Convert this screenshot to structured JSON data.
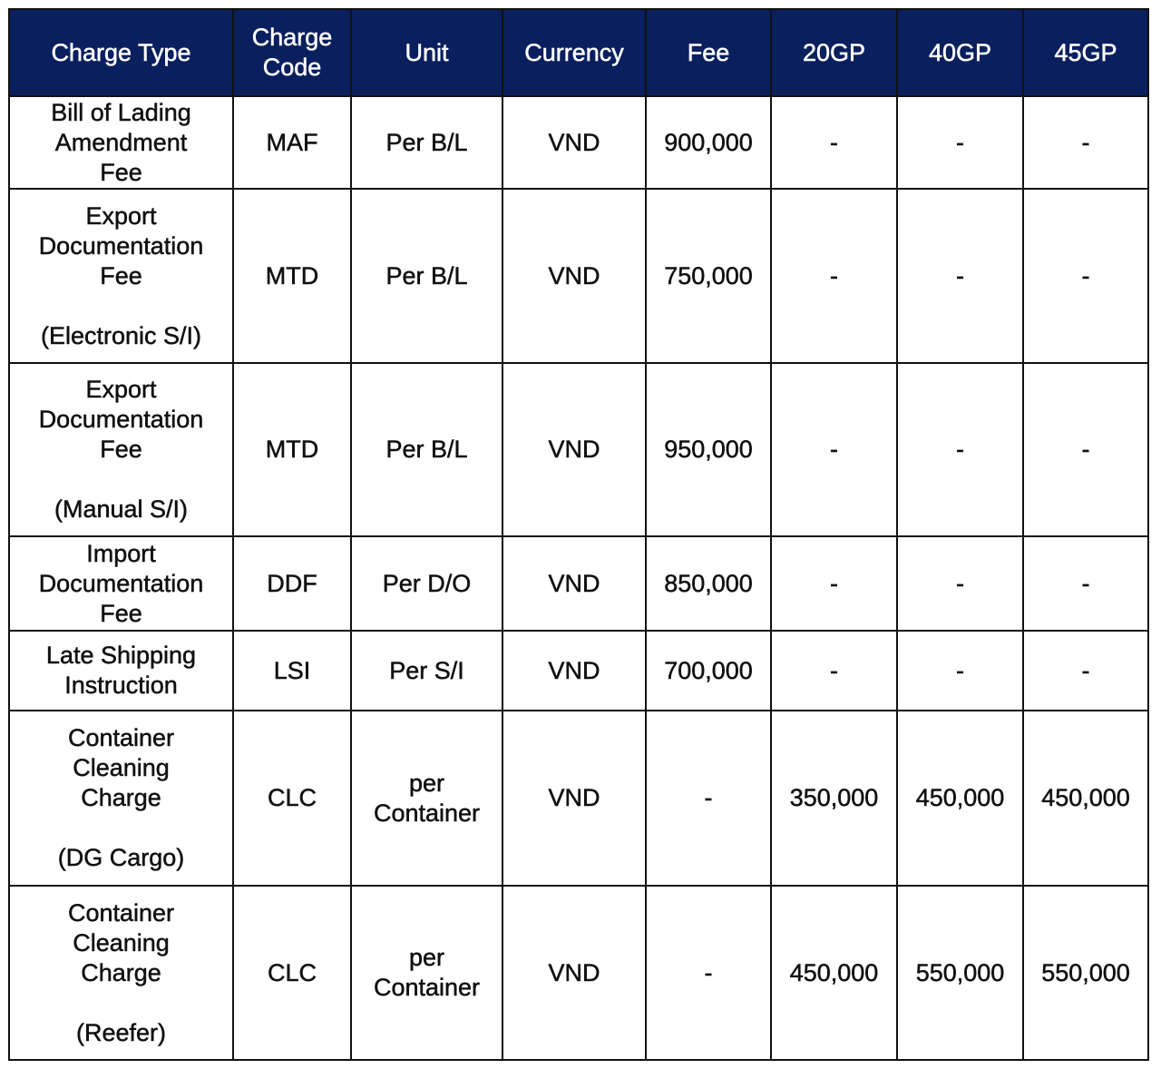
{
  "header": [
    "Charge Type",
    "Charge\nCode",
    "Unit",
    "Currency",
    "Fee",
    "20GP",
    "40GP",
    "45GP"
  ],
  "rows": [
    [
      "Bill of Lading\nAmendment\nFee",
      "MAF",
      "Per B/L",
      "VND",
      "900,000",
      "-",
      "-",
      "-"
    ],
    [
      "Export\nDocumentation\nFee\n\n(Electronic S/I)",
      "MTD",
      "Per B/L",
      "VND",
      "750,000",
      "-",
      "-",
      "-"
    ],
    [
      "Export\nDocumentation\nFee\n\n(Manual S/I)",
      "MTD",
      "Per B/L",
      "VND",
      "950,000",
      "-",
      "-",
      "-"
    ],
    [
      "Import\nDocumentation\nFee",
      "DDF",
      "Per D/O",
      "VND",
      "850,000",
      "-",
      "-",
      "-"
    ],
    [
      "Late Shipping\nInstruction",
      "LSI",
      "Per S/I",
      "VND",
      "700,000",
      "-",
      "-",
      "-"
    ],
    [
      "Container\nCleaning\nCharge\n\n(DG Cargo)",
      "CLC",
      "per\nContainer",
      "VND",
      "-",
      "350,000",
      "450,000",
      "450,000"
    ],
    [
      "Container\nCleaning\nCharge\n\n(Reefer)",
      "CLC",
      "per\nContainer",
      "VND",
      "-",
      "450,000",
      "550,000",
      "550,000"
    ]
  ],
  "colors": {
    "header_bg": "#0a1f5e",
    "header_text": "#ffffff"
  }
}
